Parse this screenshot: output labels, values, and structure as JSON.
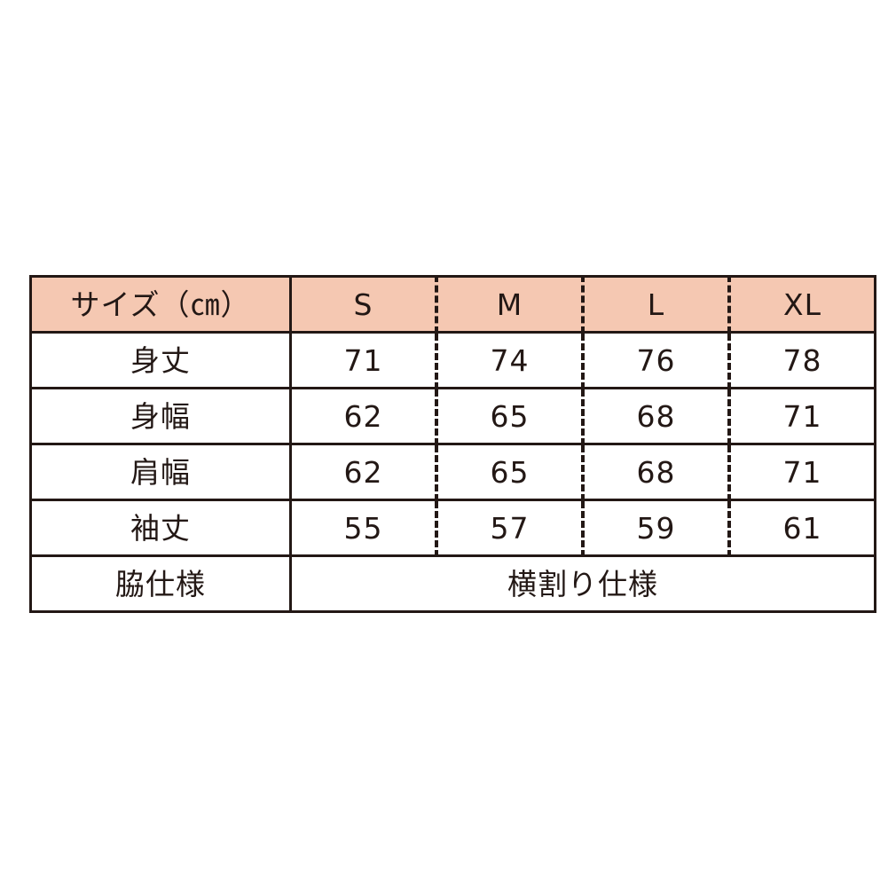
{
  "table": {
    "header": {
      "label": "サイズ（㎝）",
      "sizes": [
        "S",
        "M",
        "L",
        "XL"
      ]
    },
    "rows": [
      {
        "label": "身丈",
        "values": [
          "71",
          "74",
          "76",
          "78"
        ]
      },
      {
        "label": "身幅",
        "values": [
          "62",
          "65",
          "68",
          "71"
        ]
      },
      {
        "label": "肩幅",
        "values": [
          "62",
          "65",
          "68",
          "71"
        ]
      },
      {
        "label": "袖丈",
        "values": [
          "55",
          "57",
          "59",
          "61"
        ]
      }
    ],
    "footer": {
      "label": "脇仕様",
      "value": "横割り仕様"
    }
  },
  "colors": {
    "header_bg": "#f5c8b2",
    "line": "#231815",
    "text": "#231815",
    "page_bg": "#ffffff"
  },
  "chart_data": {
    "type": "table",
    "title": "サイズ（㎝）",
    "columns": [
      "サイズ（㎝）",
      "S",
      "M",
      "L",
      "XL"
    ],
    "rows": [
      [
        "身丈",
        71,
        74,
        76,
        78
      ],
      [
        "身幅",
        62,
        65,
        68,
        71
      ],
      [
        "肩幅",
        62,
        65,
        68,
        71
      ],
      [
        "袖丈",
        55,
        57,
        59,
        61
      ],
      [
        "脇仕様",
        "横割り仕様",
        "横割り仕様",
        "横割り仕様",
        "横割り仕様"
      ]
    ],
    "layout": {
      "header_fill": "#f5c8b2",
      "grid": "solid horizontal lines, dashed vertical separators between size columns",
      "last_row_spans_all_size_columns": true
    }
  }
}
